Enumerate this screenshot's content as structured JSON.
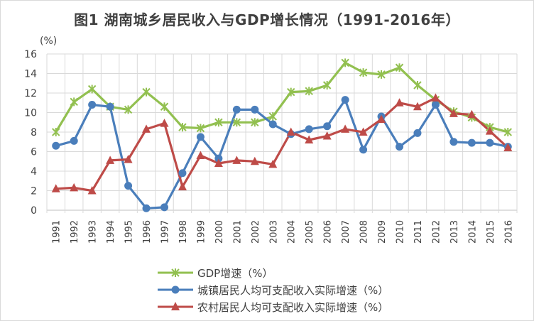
{
  "chart_data": {
    "type": "line",
    "title": "图1 湖南城乡居民收入与GDP增长情况（1991-2016年）",
    "y_unit": "(%)",
    "ylim": [
      0,
      16
    ],
    "yticks": [
      0,
      2,
      4,
      6,
      8,
      10,
      12,
      14,
      16
    ],
    "grid": true,
    "legend_position": "bottom",
    "categories": [
      "1991",
      "1992",
      "1993",
      "1994",
      "1995",
      "1996",
      "1997",
      "1998",
      "1999",
      "2000",
      "2001",
      "2002",
      "2003",
      "2004",
      "2005",
      "2006",
      "2007",
      "2008",
      "2009",
      "2010",
      "2011",
      "2012",
      "2013",
      "2014",
      "2015",
      "2016"
    ],
    "series": [
      {
        "name": "GDP增速（%）",
        "color": "#92c050",
        "marker": "star-cross",
        "values": [
          8.0,
          11.1,
          12.4,
          10.6,
          10.3,
          12.1,
          10.6,
          8.5,
          8.4,
          9.0,
          9.0,
          9.0,
          9.6,
          12.1,
          12.2,
          12.8,
          15.1,
          14.1,
          13.9,
          14.6,
          12.8,
          11.3,
          10.1,
          9.5,
          8.5,
          8.0
        ]
      },
      {
        "name": "城镇居民人均可支配收入实际增速（%）",
        "color": "#4a7ebb",
        "marker": "circle",
        "values": [
          6.6,
          7.1,
          10.8,
          10.6,
          2.5,
          0.2,
          0.3,
          3.8,
          7.5,
          5.3,
          10.3,
          10.3,
          8.8,
          7.8,
          8.3,
          8.6,
          11.3,
          6.2,
          9.6,
          6.5,
          7.9,
          10.8,
          7.0,
          6.9,
          6.9,
          6.5
        ]
      },
      {
        "name": "农村居民人均可支配收入实际增速（%）",
        "color": "#be4b48",
        "marker": "triangle",
        "values": [
          2.2,
          2.3,
          2.0,
          5.1,
          5.2,
          8.3,
          8.9,
          2.4,
          5.6,
          4.8,
          5.1,
          5.0,
          4.7,
          8.0,
          7.2,
          7.6,
          8.3,
          8.0,
          9.3,
          11.0,
          10.6,
          11.5,
          9.9,
          9.8,
          8.1,
          6.4
        ]
      }
    ]
  }
}
